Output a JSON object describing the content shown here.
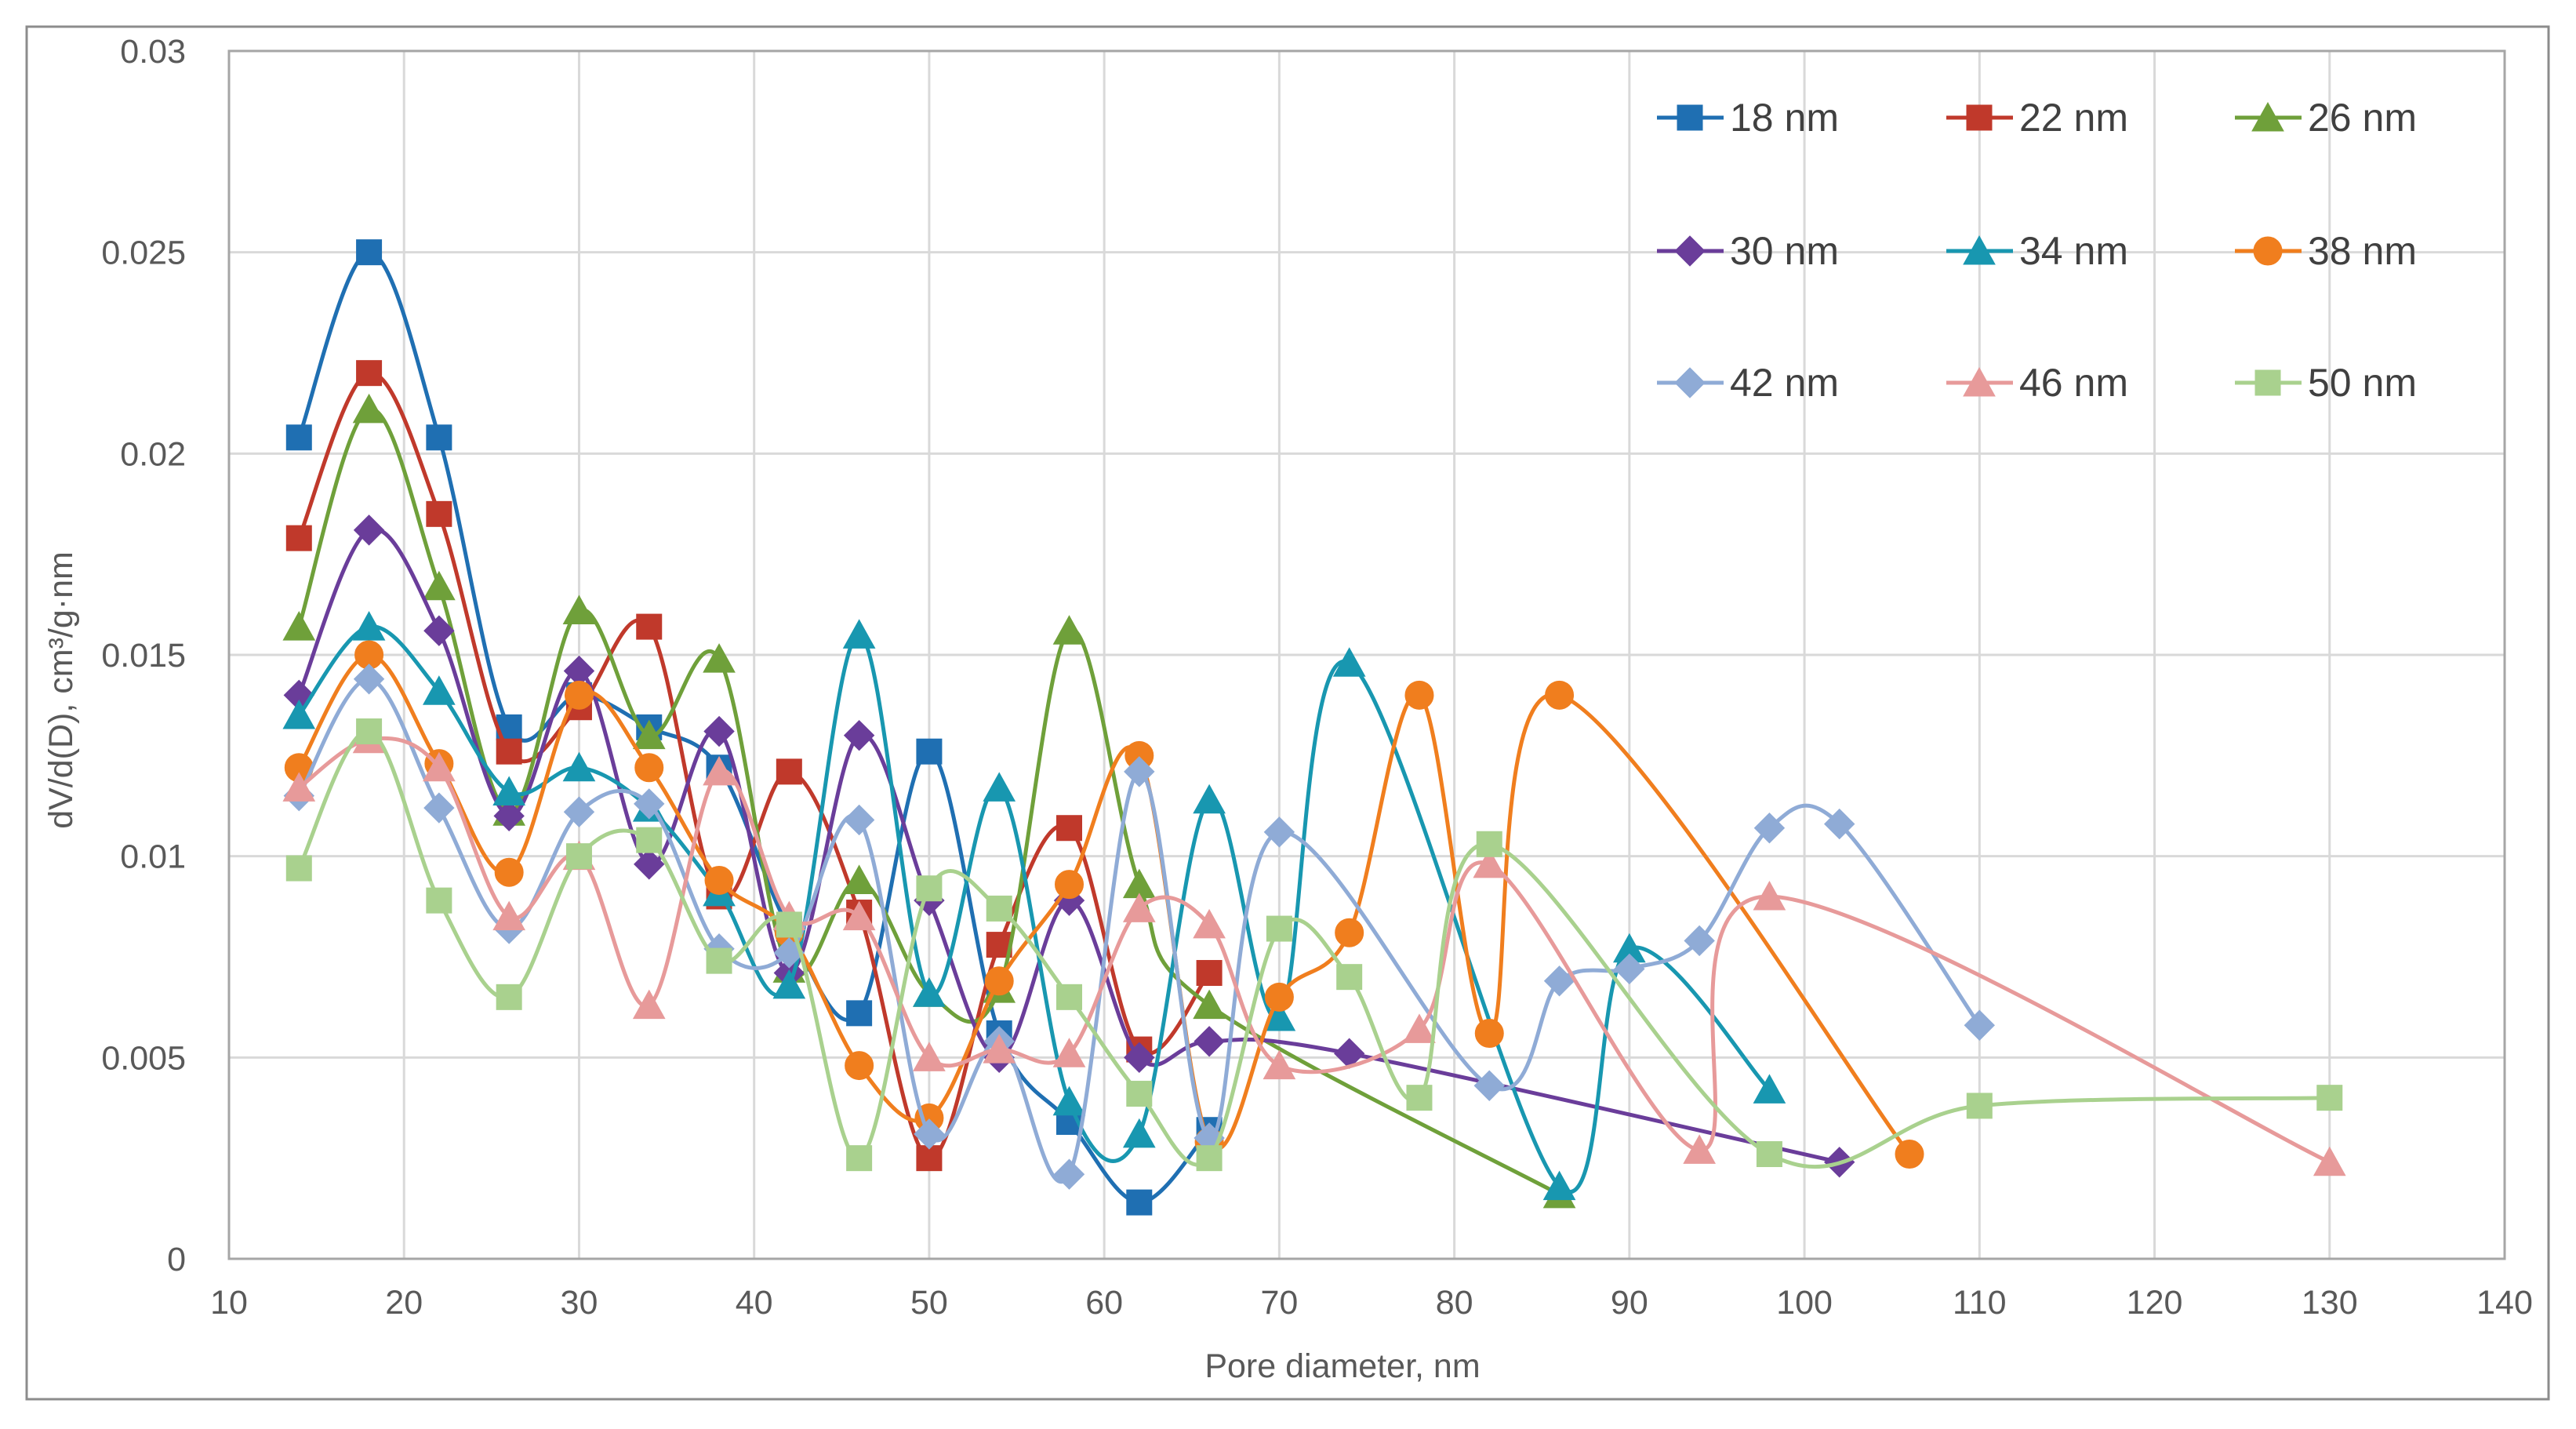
{
  "chart_data": {
    "type": "line",
    "title": "",
    "xlabel": "Pore diameter, nm",
    "ylabel": "dV/d(D), cm³/g·nm",
    "xlim": [
      10,
      140
    ],
    "ylim": [
      0,
      0.03
    ],
    "xticks": [
      10,
      20,
      30,
      40,
      50,
      60,
      70,
      80,
      90,
      100,
      110,
      120,
      130,
      140
    ],
    "yticks": [
      0,
      0.005,
      0.01,
      0.015,
      0.02,
      0.025,
      0.03
    ],
    "xtick_labels": [
      "10",
      "20",
      "30",
      "40",
      "50",
      "60",
      "70",
      "80",
      "90",
      "100",
      "110",
      "120",
      "130",
      "140"
    ],
    "ytick_labels": [
      "0",
      "0.005",
      "0.01",
      "0.015",
      "0.02",
      "0.025",
      "0.03"
    ],
    "grid": true,
    "legend_position": "top-right",
    "smooth": true,
    "series": [
      {
        "name": "18 nm",
        "color": "#1f6fb2",
        "marker": "square",
        "x": [
          14,
          18,
          22,
          26,
          30,
          34,
          38,
          42,
          46,
          50,
          54,
          58,
          62,
          66
        ],
        "y": [
          0.0204,
          0.025,
          0.0204,
          0.0132,
          0.014,
          0.0132,
          0.0122,
          0.0082,
          0.0061,
          0.0126,
          0.0056,
          0.0034,
          0.0014,
          0.0032
        ]
      },
      {
        "name": "22 nm",
        "color": "#c0392b",
        "marker": "square",
        "x": [
          14,
          18,
          22,
          26,
          30,
          34,
          38,
          42,
          46,
          50,
          54,
          58,
          62,
          66
        ],
        "y": [
          0.0179,
          0.022,
          0.0185,
          0.0126,
          0.0137,
          0.0157,
          0.009,
          0.0121,
          0.0086,
          0.0025,
          0.0078,
          0.0107,
          0.0052,
          0.0071
        ]
      },
      {
        "name": "26 nm",
        "color": "#6fa03a",
        "marker": "triangle",
        "x": [
          14,
          18,
          22,
          26,
          30,
          34,
          38,
          42,
          46,
          50,
          54,
          58,
          62,
          66,
          86
        ],
        "y": [
          0.0157,
          0.0211,
          0.0167,
          0.0111,
          0.0161,
          0.013,
          0.0149,
          0.0072,
          0.0094,
          0.0066,
          0.0067,
          0.0156,
          0.0093,
          0.0063,
          0.0016
        ]
      },
      {
        "name": "30 nm",
        "color": "#6a3d9a",
        "marker": "diamond",
        "x": [
          14,
          18,
          22,
          26,
          30,
          34,
          38,
          42,
          46,
          50,
          54,
          58,
          62,
          66,
          74,
          102
        ],
        "y": [
          0.014,
          0.0181,
          0.0156,
          0.011,
          0.0146,
          0.0098,
          0.0131,
          0.0071,
          0.013,
          0.0089,
          0.005,
          0.0089,
          0.005,
          0.0054,
          0.0051,
          0.0024
        ]
      },
      {
        "name": "34 nm",
        "color": "#1897b0",
        "marker": "triangle",
        "x": [
          14,
          18,
          22,
          26,
          30,
          34,
          38,
          42,
          46,
          50,
          54,
          58,
          62,
          66,
          70,
          74,
          86,
          90,
          98
        ],
        "y": [
          0.0135,
          0.0157,
          0.0141,
          0.0116,
          0.0122,
          0.0112,
          0.0091,
          0.0068,
          0.0155,
          0.0066,
          0.0117,
          0.0039,
          0.0031,
          0.0114,
          0.006,
          0.0148,
          0.0018,
          0.0077,
          0.0042
        ]
      },
      {
        "name": "38 nm",
        "color": "#f07e1e",
        "marker": "circle",
        "x": [
          14,
          18,
          22,
          26,
          30,
          34,
          38,
          42,
          46,
          50,
          54,
          58,
          62,
          66,
          70,
          74,
          78,
          82,
          86,
          106
        ],
        "y": [
          0.0122,
          0.015,
          0.0123,
          0.0096,
          0.014,
          0.0122,
          0.0094,
          0.0081,
          0.0048,
          0.0035,
          0.0069,
          0.0093,
          0.0125,
          0.0029,
          0.0065,
          0.0081,
          0.014,
          0.0056,
          0.014,
          0.0026
        ]
      },
      {
        "name": "42 nm",
        "color": "#8fabd6",
        "marker": "diamond",
        "x": [
          14,
          18,
          22,
          26,
          30,
          34,
          38,
          42,
          46,
          50,
          54,
          58,
          62,
          66,
          70,
          82,
          86,
          90,
          94,
          98,
          102,
          110
        ],
        "y": [
          0.0115,
          0.0144,
          0.0112,
          0.0082,
          0.0111,
          0.0113,
          0.0077,
          0.0076,
          0.0109,
          0.0031,
          0.0054,
          0.0021,
          0.0121,
          0.003,
          0.0106,
          0.0043,
          0.0069,
          0.0072,
          0.0079,
          0.0107,
          0.0108,
          0.0058
        ]
      },
      {
        "name": "46 nm",
        "color": "#e79a9a",
        "marker": "triangle",
        "x": [
          14,
          18,
          22,
          26,
          30,
          34,
          38,
          42,
          46,
          50,
          54,
          58,
          62,
          66,
          70,
          78,
          82,
          94,
          98,
          130
        ],
        "y": [
          0.0117,
          0.0129,
          0.0122,
          0.0085,
          0.01,
          0.0063,
          0.0121,
          0.0085,
          0.0085,
          0.005,
          0.0052,
          0.0051,
          0.0087,
          0.0083,
          0.0048,
          0.0057,
          0.0098,
          0.0027,
          0.009,
          0.0024
        ]
      },
      {
        "name": "50 nm",
        "color": "#a9d18e",
        "marker": "square",
        "x": [
          14,
          18,
          22,
          26,
          30,
          34,
          38,
          42,
          46,
          50,
          54,
          58,
          62,
          66,
          70,
          74,
          78,
          82,
          98,
          110,
          130
        ],
        "y": [
          0.0097,
          0.0131,
          0.0089,
          0.0065,
          0.01,
          0.0104,
          0.0074,
          0.0083,
          0.0025,
          0.0092,
          0.0087,
          0.0065,
          0.0041,
          0.0025,
          0.0082,
          0.007,
          0.004,
          0.0103,
          0.0026,
          0.0038,
          0.004
        ]
      }
    ]
  }
}
